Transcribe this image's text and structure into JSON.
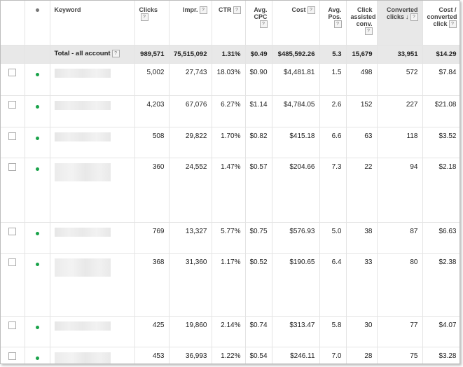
{
  "columns": {
    "keyword": "Keyword",
    "clicks": "Clicks",
    "impr": "Impr.",
    "ctr": "CTR",
    "cpc": "Avg. CPC",
    "cost": "Cost",
    "pos": "Avg. Pos.",
    "assisted": "Click assisted conv.",
    "converted": "Converted clicks",
    "cost_per": "Cost / converted click",
    "help_glyph": "?",
    "sort_glyph": "↓"
  },
  "total": {
    "label": "Total - all account",
    "clicks": "989,571",
    "impr": "75,515,092",
    "ctr": "1.31%",
    "cpc": "$0.49",
    "cost": "$485,592.26",
    "pos": "5.3",
    "assisted": "15,679",
    "converted": "33,951",
    "cost_per": "$14.29"
  },
  "rows": [
    {
      "clicks": "5,002",
      "impr": "27,743",
      "ctr": "18.03%",
      "cpc": "$0.90",
      "cost": "$4,481.81",
      "pos": "1.5",
      "assisted": "498",
      "converted": "572",
      "cost_per": "$7.84"
    },
    {
      "clicks": "4,203",
      "impr": "67,076",
      "ctr": "6.27%",
      "cpc": "$1.14",
      "cost": "$4,784.05",
      "pos": "2.6",
      "assisted": "152",
      "converted": "227",
      "cost_per": "$21.08"
    },
    {
      "clicks": "508",
      "impr": "29,822",
      "ctr": "1.70%",
      "cpc": "$0.82",
      "cost": "$415.18",
      "pos": "6.6",
      "assisted": "63",
      "converted": "118",
      "cost_per": "$3.52"
    },
    {
      "clicks": "360",
      "impr": "24,552",
      "ctr": "1.47%",
      "cpc": "$0.57",
      "cost": "$204.66",
      "pos": "7.3",
      "assisted": "22",
      "converted": "94",
      "cost_per": "$2.18"
    },
    {
      "clicks": "769",
      "impr": "13,327",
      "ctr": "5.77%",
      "cpc": "$0.75",
      "cost": "$576.93",
      "pos": "5.0",
      "assisted": "38",
      "converted": "87",
      "cost_per": "$6.63"
    },
    {
      "clicks": "368",
      "impr": "31,360",
      "ctr": "1.17%",
      "cpc": "$0.52",
      "cost": "$190.65",
      "pos": "6.4",
      "assisted": "33",
      "converted": "80",
      "cost_per": "$2.38"
    },
    {
      "clicks": "425",
      "impr": "19,860",
      "ctr": "2.14%",
      "cpc": "$0.74",
      "cost": "$313.47",
      "pos": "5.8",
      "assisted": "30",
      "converted": "77",
      "cost_per": "$4.07"
    },
    {
      "clicks": "453",
      "impr": "36,993",
      "ctr": "1.22%",
      "cpc": "$0.54",
      "cost": "$246.11",
      "pos": "7.0",
      "assisted": "28",
      "converted": "75",
      "cost_per": "$3.28"
    }
  ]
}
